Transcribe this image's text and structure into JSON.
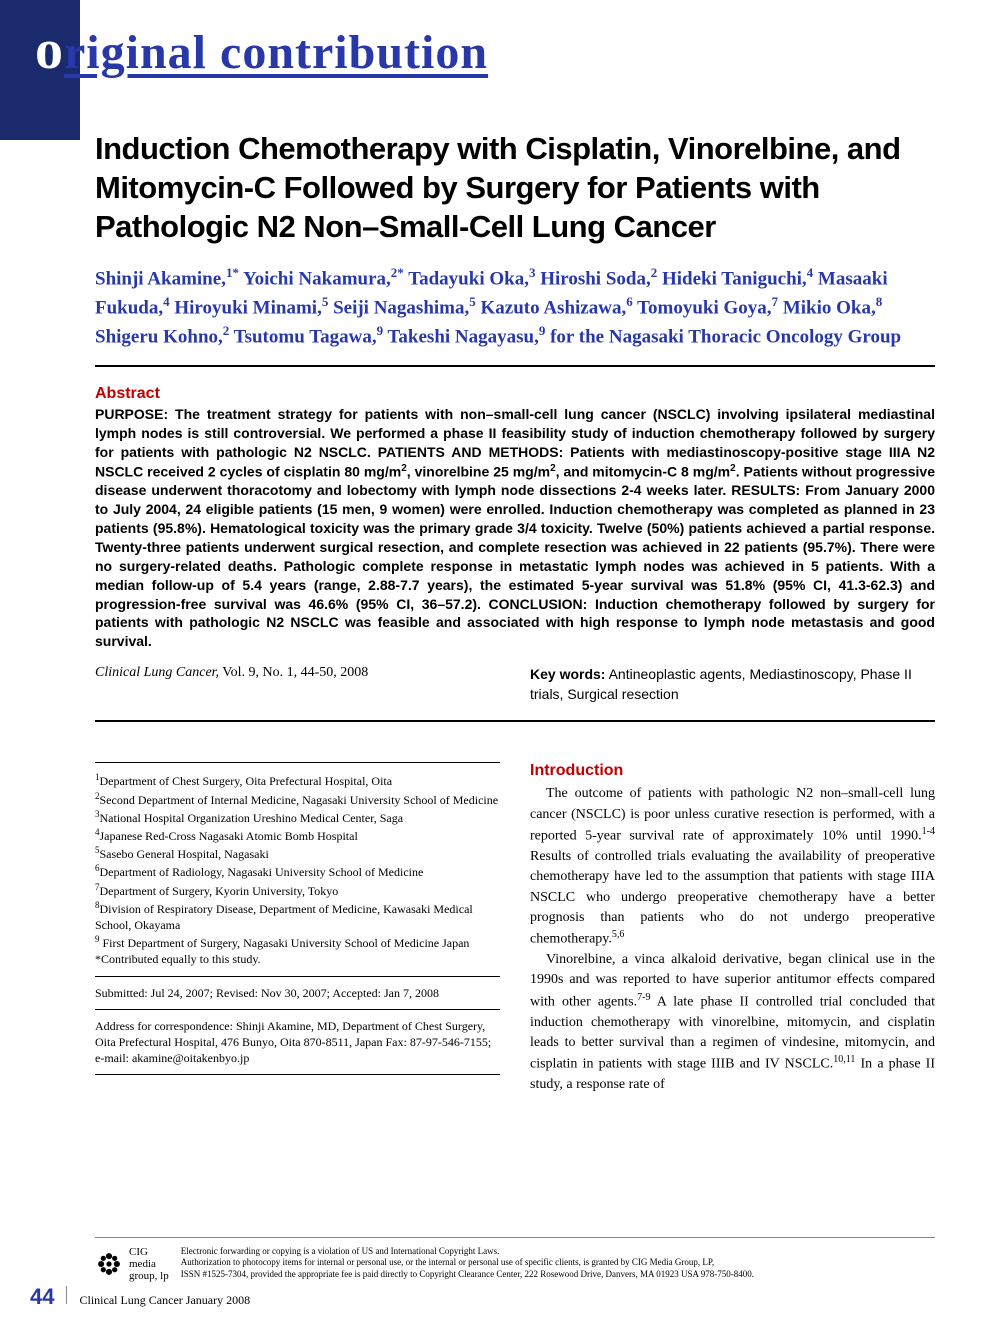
{
  "header": {
    "section_label_cap": "o",
    "section_label_rest": "riginal contribution"
  },
  "article": {
    "title": "Induction Chemotherapy with Cisplatin, Vinorelbine, and Mitomycin-C Followed by Surgery for Patients with Pathologic N2 Non–Small-Cell Lung Cancer",
    "authors_html": "Shinji Akamine,<sup>1*</sup> Yoichi Nakamura,<sup>2*</sup> Tadayuki Oka,<sup>3</sup> Hiroshi Soda,<sup>2</sup> Hideki Taniguchi,<sup>4</sup> Masaaki Fukuda,<sup>4</sup> Hiroyuki Minami,<sup>5</sup> Seiji Nagashima,<sup>5</sup> Kazuto Ashizawa,<sup>6</sup> Tomoyuki Goya,<sup>7</sup> Mikio Oka,<sup>8</sup> Shigeru Kohno,<sup>2</sup> Tsutomu Tagawa,<sup>9</sup> Takeshi Nagayasu,<sup>9</sup> for the Nagasaki Thoracic Oncology Group",
    "abstract_head": "Abstract",
    "abstract_body": "PURPOSE: The treatment strategy for patients with non–small-cell lung cancer (NSCLC) involving ipsilateral mediastinal lymph nodes is still controversial. We performed a phase II feasibility study of induction chemotherapy followed by surgery for patients with pathologic N2 NSCLC. PATIENTS AND METHODS: Patients with mediastinoscopy-positive stage IIIA N2 NSCLC received 2 cycles of cisplatin 80 mg/m<sup>2</sup>, vinorelbine 25 mg/m<sup>2</sup>, and mitomycin-C 8 mg/m<sup>2</sup>. Patients without progressive disease underwent thoracotomy and lobectomy with lymph node dissections 2-4 weeks later. RESULTS: From January 2000 to July 2004, 24 eligible patients (15 men, 9 women) were enrolled. Induction chemotherapy was completed as planned in 23 patients (95.8%). Hematological toxicity was the primary grade 3/4 toxicity. Twelve (50%) patients achieved a partial response. Twenty-three patients underwent surgical resection, and complete resection was achieved in 22 patients (95.7%). There were no surgery-related deaths. Pathologic complete response in metastatic lymph nodes was achieved in 5 patients. With a median follow-up of 5.4 years (range, 2.88-7.7 years), the estimated 5-year survival was 51.8% (95% CI, 41.3-62.3) and progression-free survival was 46.6% (95% CI, 36–57.2). CONCLUSION: Induction chemotherapy followed by surgery for patients with pathologic N2 NSCLC was feasible and associated with high response to lymph node metastasis and good survival.",
    "citation_journal": "Clinical Lung Cancer,",
    "citation_vol": " Vol. 9, No. 1, 44-50, 2008",
    "keywords_label": "Key words:",
    "keywords_text": " Antineoplastic agents, Mediastinoscopy, Phase II trials, Surgical resection"
  },
  "affiliations": {
    "list_html": "<sup>1</sup>Department of Chest Surgery, Oita Prefectural Hospital, Oita<br><sup>2</sup>Second Department of Internal Medicine, Nagasaki University School of Medicine<br><sup>3</sup>National Hospital Organization Ureshino Medical Center, Saga<br><sup>4</sup>Japanese Red-Cross Nagasaki Atomic Bomb Hospital<br><sup>5</sup>Sasebo General Hospital, Nagasaki<br><sup>6</sup>Department of Radiology, Nagasaki University School of Medicine<br><sup>7</sup>Department of Surgery, Kyorin University, Tokyo<br><sup>8</sup>Division of Respiratory Disease, Department of Medicine, Kawasaki Medical School, Okayama<br><sup>9</sup> First Department of Surgery, Nagasaki University School of Medicine Japan<br>*Contributed equally to this study.",
    "submitted": "Submitted: Jul 24, 2007; Revised: Nov 30, 2007; Accepted: Jan 7, 2008",
    "correspondence": "Address for correspondence: Shinji Akamine, MD, Department of Chest Surgery, Oita Prefectural Hospital, 476 Bunyo, Oita 870-8511, Japan Fax: 87-97-546-7155; e-mail: akamine@oitakenbyo.jp"
  },
  "introduction": {
    "head": "Introduction",
    "p1": "The outcome of patients with pathologic N2 non–small-cell lung cancer (NSCLC) is poor unless curative resection is performed, with a reported 5-year survival rate of approximately 10% until 1990.<sup>1-4</sup> Results of controlled trials evaluating the availability of preoperative chemotherapy have led to the assumption that patients with stage IIIA NSCLC who undergo preoperative chemotherapy have a better prognosis than patients who do not undergo preoperative chemotherapy.<sup>5,6</sup>",
    "p2": "Vinorelbine, a vinca alkaloid derivative, began clinical use in the 1990s and was reported to have superior antitumor effects compared with other agents.<sup>7-9</sup> A late phase II controlled trial concluded that induction chemotherapy with vinorelbine, mitomycin, and cisplatin leads to better survival than a regimen of vindesine, mitomycin, and cisplatin in patients with stage IIIB and IV NSCLC.<sup>10,11</sup> In a phase II study, a response rate of"
  },
  "footer": {
    "logo_line1": "CIG",
    "logo_line2": "media",
    "logo_line3": "group, lp",
    "copyright": "Electronic forwarding or copying is a violation of US and International Copyright Laws.\nAuthorization to photocopy items for internal or personal use, or the internal or personal use of specific clients, is granted by CIG Media Group, LP,\nISSN #1525-7304, provided the appropriate fee is paid directly to Copyright Clearance Center, 222 Rosewood Drive, Danvers, MA 01923 USA 978-750-8400.",
    "page_num": "44",
    "journal_foot": "Clinical Lung Cancer  January 2008"
  },
  "colors": {
    "brand_blue": "#2838a8",
    "block_blue": "#1a2a6c",
    "heading_red": "#c00000",
    "text": "#000000",
    "bg": "#ffffff"
  }
}
